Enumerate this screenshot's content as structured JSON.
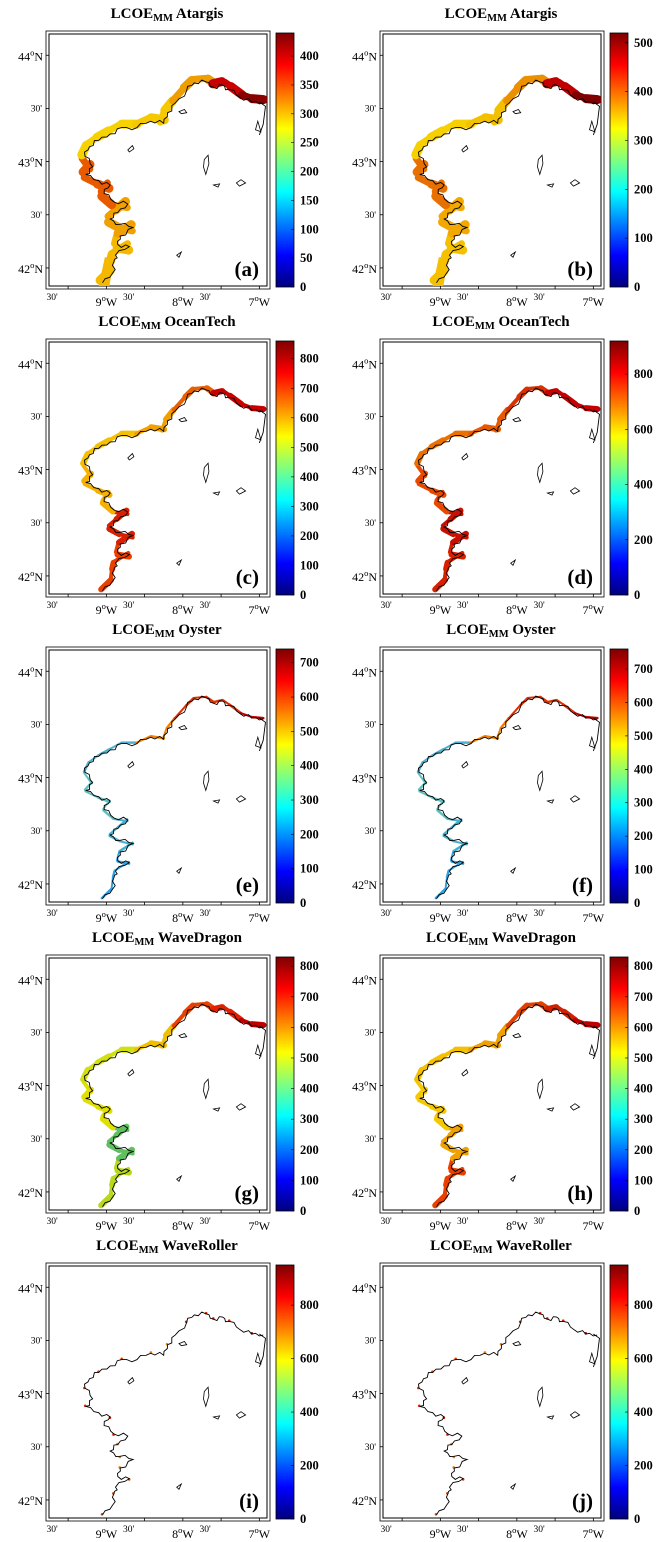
{
  "panels": [
    {
      "id": "a",
      "title_prefix": "LCOE",
      "title_sub": "MM",
      "title_device": "Atargis",
      "label": "(a)",
      "cbar_max": 440,
      "cbar_ticks": [
        0,
        50,
        100,
        150,
        200,
        250,
        300,
        350,
        400
      ],
      "coast_band": {
        "west_colors": [
          "#f5b800",
          "#f0a000",
          "#e85a00"
        ],
        "north_colors": [
          "#f6d300",
          "#f5c800",
          "#ee9e00"
        ],
        "east_colors": [
          "#c80000",
          "#8a0000"
        ],
        "width": "wide"
      }
    },
    {
      "id": "b",
      "title_prefix": "LCOE",
      "title_sub": "MM",
      "title_device": "Atargis",
      "label": "(b)",
      "cbar_max": 520,
      "cbar_ticks": [
        0,
        100,
        200,
        300,
        400,
        500
      ],
      "coast_band": {
        "west_colors": [
          "#f5c000",
          "#f2a800",
          "#e87000"
        ],
        "north_colors": [
          "#f6d000",
          "#f3c000",
          "#ec9000"
        ],
        "east_colors": [
          "#c00000",
          "#800000"
        ],
        "width": "wide"
      }
    },
    {
      "id": "c",
      "title_prefix": "LCOE",
      "title_sub": "MM",
      "title_device": "OceanTech",
      "label": "(c)",
      "cbar_max": 860,
      "cbar_ticks": [
        0,
        100,
        200,
        300,
        400,
        500,
        600,
        700,
        800
      ],
      "coast_band": {
        "west_colors": [
          "#e84000",
          "#d82000",
          "#f5b000"
        ],
        "north_colors": [
          "#f5c000",
          "#f2a000",
          "#e86000"
        ],
        "east_colors": [
          "#c80000",
          "#c80000"
        ],
        "width": "medium"
      }
    },
    {
      "id": "d",
      "title_prefix": "LCOE",
      "title_sub": "MM",
      "title_device": "OceanTech",
      "label": "(d)",
      "cbar_max": 920,
      "cbar_ticks": [
        0,
        200,
        400,
        600,
        800
      ],
      "coast_band": {
        "west_colors": [
          "#d82000",
          "#c81000",
          "#e84800"
        ],
        "north_colors": [
          "#ec7000",
          "#e85a00",
          "#d83000"
        ],
        "east_colors": [
          "#c80000",
          "#c80000"
        ],
        "width": "medium"
      }
    },
    {
      "id": "e",
      "title_prefix": "LCOE",
      "title_sub": "MM",
      "title_device": "Oyster",
      "label": "(e)",
      "cbar_max": 740,
      "cbar_ticks": [
        0,
        100,
        200,
        300,
        400,
        500,
        600,
        700
      ],
      "coast_band": {
        "west_colors": [
          "#30a0e0",
          "#40b0d0",
          "#60c0c0"
        ],
        "north_colors": [
          "#50b0d0",
          "#f08000",
          "#e03000"
        ],
        "east_colors": [
          "#e03000",
          "#c00000"
        ],
        "width": "thin"
      }
    },
    {
      "id": "f",
      "title_prefix": "LCOE",
      "title_sub": "MM",
      "title_device": "Oyster",
      "label": "(f)",
      "cbar_max": 760,
      "cbar_ticks": [
        0,
        100,
        200,
        300,
        400,
        500,
        600,
        700
      ],
      "coast_band": {
        "west_colors": [
          "#30a0e0",
          "#40b0d0",
          "#60c0c0"
        ],
        "north_colors": [
          "#50b0d0",
          "#f08000",
          "#e03000"
        ],
        "east_colors": [
          "#e03000",
          "#c00000"
        ],
        "width": "thin"
      }
    },
    {
      "id": "g",
      "title_prefix": "LCOE",
      "title_sub": "MM",
      "title_device": "WaveDragon",
      "label": "(g)",
      "cbar_max": 830,
      "cbar_ticks": [
        0,
        100,
        200,
        300,
        400,
        500,
        600,
        700,
        800
      ],
      "coast_band": {
        "west_colors": [
          "#b8d820",
          "#60c060",
          "#e0e000"
        ],
        "north_colors": [
          "#d0e010",
          "#f0c000",
          "#e84000"
        ],
        "east_colors": [
          "#e02000",
          "#c00000"
        ],
        "width": "medium"
      }
    },
    {
      "id": "h",
      "title_prefix": "LCOE",
      "title_sub": "MM",
      "title_device": "WaveDragon",
      "label": "(h)",
      "cbar_max": 830,
      "cbar_ticks": [
        0,
        100,
        200,
        300,
        400,
        500,
        600,
        700,
        800
      ],
      "coast_band": {
        "west_colors": [
          "#e84000",
          "#f0a000",
          "#f5c800"
        ],
        "north_colors": [
          "#f5c000",
          "#f0a000",
          "#e04000"
        ],
        "east_colors": [
          "#d02000",
          "#c00000"
        ],
        "width": "medium"
      }
    },
    {
      "id": "i",
      "title_prefix": "LCOE",
      "title_sub": "MM",
      "title_device": "WaveRoller",
      "label": "(i)",
      "cbar_max": 950,
      "cbar_ticks": [
        0,
        200,
        400,
        600,
        800
      ],
      "coast_band": {
        "west_colors": [
          "#e04000",
          "#f08000",
          "#e02000"
        ],
        "north_colors": [
          "#e04000",
          "#f08000",
          "#e02000"
        ],
        "east_colors": [
          "#d02000",
          "#c00000"
        ],
        "width": "dots"
      }
    },
    {
      "id": "j",
      "title_prefix": "LCOE",
      "title_sub": "MM",
      "title_device": "WaveRoller",
      "label": "(j)",
      "cbar_max": 950,
      "cbar_ticks": [
        0,
        200,
        400,
        600,
        800
      ],
      "coast_band": {
        "west_colors": [
          "#e04000",
          "#f08000",
          "#e02000"
        ],
        "north_colors": [
          "#e04000",
          "#f08000",
          "#e02000"
        ],
        "east_colors": [
          "#d02000",
          "#c00000"
        ],
        "width": "dots"
      }
    }
  ],
  "axes": {
    "y_ticks": [
      {
        "lat": 44.0,
        "deg": "44",
        "sup": "o",
        "hem": "N"
      },
      {
        "lat": 43.5,
        "label": "30'"
      },
      {
        "lat": 43.0,
        "deg": "43",
        "sup": "o",
        "hem": "N"
      },
      {
        "lat": 42.5,
        "label": "30'"
      },
      {
        "lat": 42.0,
        "deg": "42",
        "sup": "o",
        "hem": "N"
      }
    ],
    "x_ticks": [
      {
        "lon": -9.5,
        "label": "30'"
      },
      {
        "lon": -9.0,
        "deg": "9",
        "sup": "o",
        "hem": "W"
      },
      {
        "lon": -8.5,
        "label": "30'"
      },
      {
        "lon": -8.0,
        "deg": "8",
        "sup": "o",
        "hem": "W"
      },
      {
        "lon": -7.5,
        "label": "30'"
      },
      {
        "lon": -7.0,
        "deg": "7",
        "sup": "o",
        "hem": "W"
      }
    ],
    "lon_range": [
      -9.75,
      -6.9
    ],
    "lat_range": [
      41.83,
      44.2
    ]
  },
  "colormap": [
    "#00007f",
    "#0000ff",
    "#007fff",
    "#00ffff",
    "#7fff7f",
    "#ffff00",
    "#ff7f00",
    "#ff0000",
    "#7f0000"
  ]
}
